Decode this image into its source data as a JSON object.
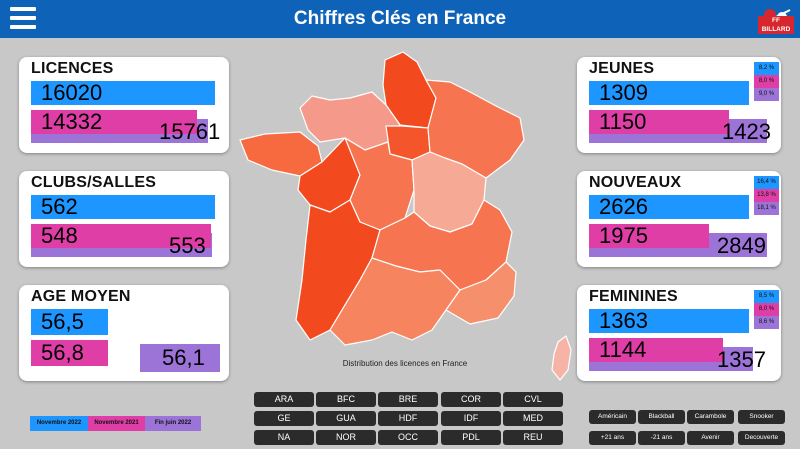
{
  "header": {
    "title": "Chiffres Clés en France",
    "logo_text": "FF BILLARD"
  },
  "colors": {
    "nov2022": "#1e96ff",
    "nov2021": "#de3ea6",
    "fin_juin_2022": "#9c74d8",
    "header": "#0e63b8"
  },
  "cards": {
    "licences": {
      "title": "LICENCES",
      "v1": "16020",
      "v2": "14332",
      "v3": "15761"
    },
    "clubs": {
      "title": "CLUBS/SALLES",
      "v1": "562",
      "v2": "548",
      "v3": "553"
    },
    "age": {
      "title": "AGE MOYEN",
      "v1": "56,5",
      "v2": "56,8",
      "v3": "56,1"
    },
    "jeunes": {
      "title": "JEUNES",
      "v1": "1309",
      "v2": "1150",
      "v3": "1423",
      "p1": "8,2 %",
      "p2": "8,0 %",
      "p3": "9,0 %"
    },
    "nouveaux": {
      "title": "NOUVEAUX",
      "v1": "2626",
      "v2": "1975",
      "v3": "2849",
      "p1": "16,4 %",
      "p2": "13,8 %",
      "p3": "18,1 %"
    },
    "feminines": {
      "title": "FEMININES",
      "v1": "1363",
      "v2": "1144",
      "v3": "1357",
      "p1": "8,5 %",
      "p2": "8,0 %",
      "p3": "8,6 %"
    }
  },
  "map": {
    "caption": "Distribution des licences en France"
  },
  "legend": {
    "l1": "Novembre 2022",
    "l2": "Novembre 2021",
    "l3": "Fin juin 2022"
  },
  "regions": [
    "ARA",
    "BFC",
    "BRE",
    "COR",
    "CVL",
    "GE",
    "GUA",
    "HDF",
    "IDF",
    "MED",
    "NA",
    "NOR",
    "OCC",
    "PDL",
    "REU"
  ],
  "categories": [
    "Américain",
    "Blackball",
    "Carambole",
    "Snooker",
    "+21 ans",
    "-21 ans",
    "Avenir",
    "Decouverte"
  ]
}
